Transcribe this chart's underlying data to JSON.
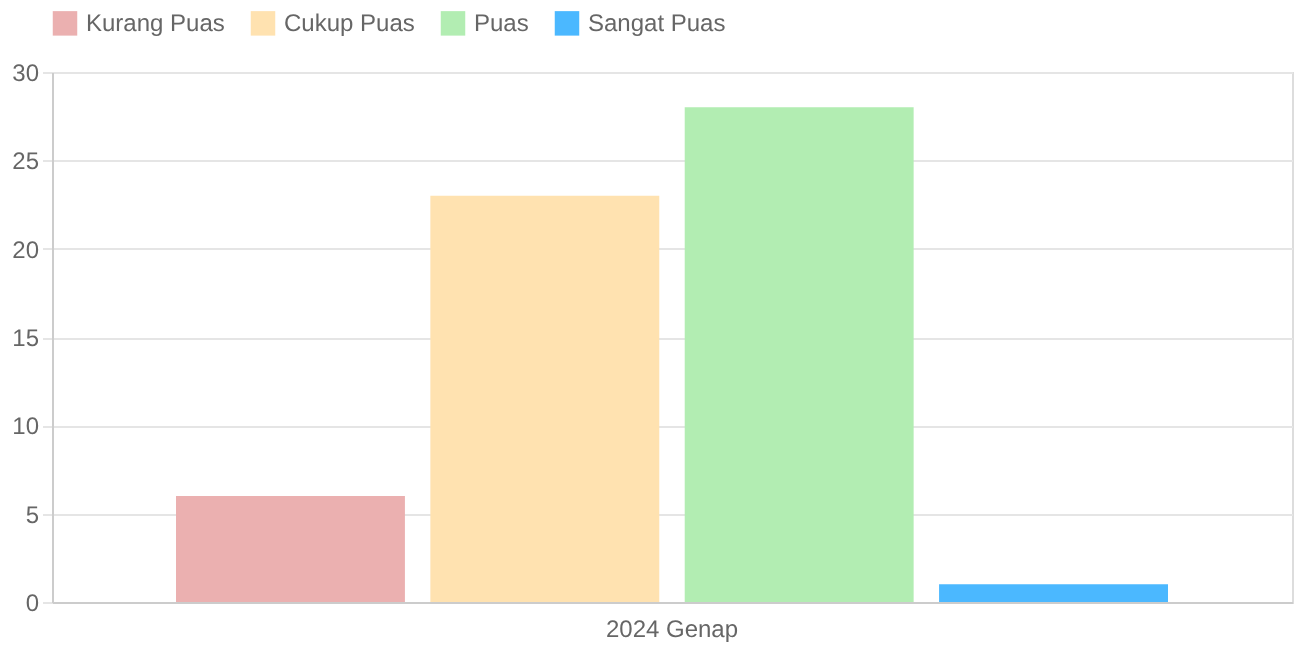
{
  "chart_data": {
    "type": "bar",
    "categories": [
      "2024 Genap"
    ],
    "series": [
      {
        "name": "Kurang Puas",
        "color": "#ebb0b0",
        "values": [
          6
        ]
      },
      {
        "name": "Cukup Puas",
        "color": "#ffe2b0",
        "values": [
          23
        ]
      },
      {
        "name": "Puas",
        "color": "#b2edb2",
        "values": [
          28
        ]
      },
      {
        "name": "Sangat Puas",
        "color": "#4bb8ff",
        "values": [
          1
        ]
      }
    ],
    "ylim": [
      0,
      30
    ],
    "yticks": [
      0,
      5,
      10,
      15,
      20,
      25,
      30
    ],
    "grid": "y",
    "legend": "top"
  }
}
